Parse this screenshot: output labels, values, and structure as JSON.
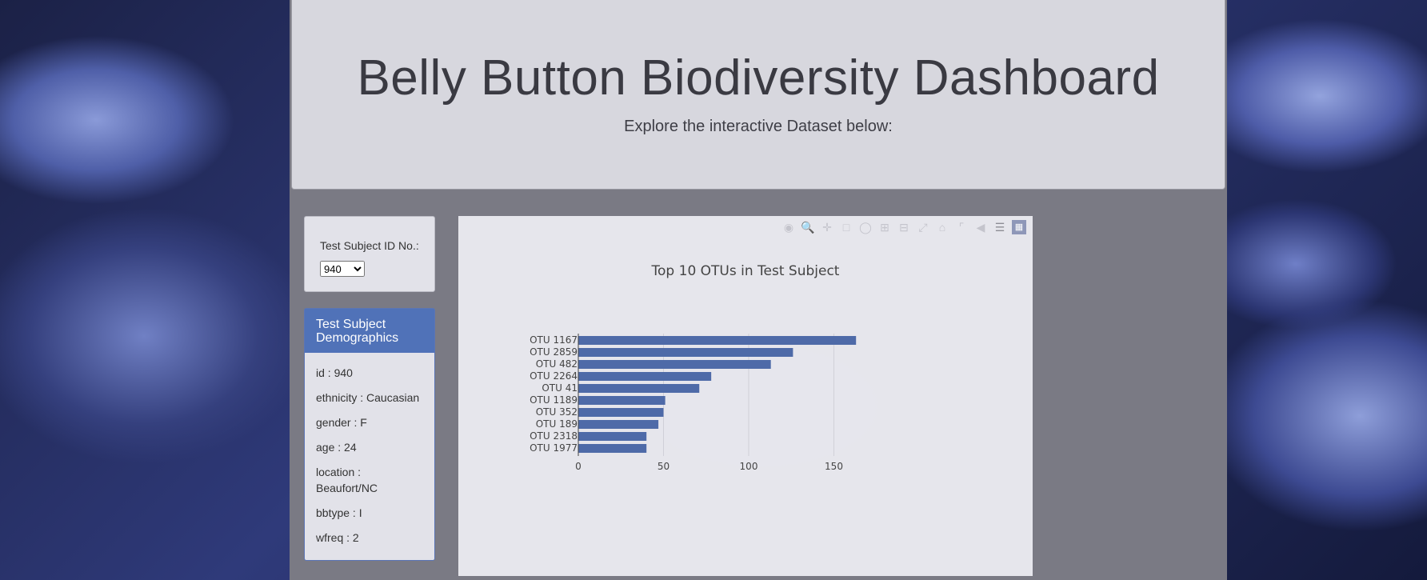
{
  "header": {
    "title": "Belly Button Biodiversity Dashboard",
    "subtitle": "Explore the interactive Dataset below:"
  },
  "selector": {
    "label": "Test Subject ID No.:",
    "selected": "940"
  },
  "demographics": {
    "heading": "Test Subject Demographics",
    "items": [
      "id : 940",
      "ethnicity : Caucasian",
      "gender : F",
      "age : 24",
      "location : Beaufort/NC",
      "bbtype : I",
      "wfreq : 2"
    ]
  },
  "modebar": {
    "icons": [
      "camera-icon",
      "zoom-icon",
      "pan-icon",
      "box-select-icon",
      "lasso-icon",
      "zoom-in-icon",
      "zoom-out-icon",
      "autoscale-icon",
      "reset-axes-icon",
      "spike-lines-icon",
      "hover-closest-icon",
      "hover-compare-icon",
      "plotly-logo-icon"
    ]
  },
  "chart_data": {
    "type": "bar",
    "orientation": "horizontal",
    "title": "Top 10 OTUs in Test Subject",
    "categories": [
      "OTU 1167",
      "OTU 2859",
      "OTU 482",
      "OTU 2264",
      "OTU 41",
      "OTU 1189",
      "OTU 352",
      "OTU 189",
      "OTU 2318",
      "OTU 1977"
    ],
    "values": [
      163,
      126,
      113,
      78,
      71,
      51,
      50,
      47,
      40,
      40
    ],
    "xticks": [
      0,
      50,
      100,
      150
    ],
    "xlim": [
      0,
      170
    ],
    "color": "#4e6aa8",
    "grid": true
  }
}
